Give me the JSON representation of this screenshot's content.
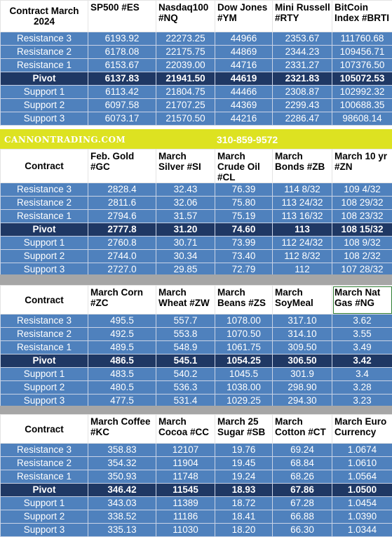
{
  "banner": {
    "site": "CANNONTRADING.COM",
    "phone": "310-859-9572"
  },
  "blocks": [
    {
      "headers": [
        "Contract March 2024",
        "SP500 #ES",
        "Nasdaq100 #NQ",
        "Dow Jones #YM",
        "Mini Russell #RTY",
        "BitCoin Index #BRTI"
      ],
      "rows": [
        {
          "label": "Resistance 3",
          "values": [
            "6193.92",
            "22273.25",
            "44966",
            "2353.67",
            "111760.68"
          ]
        },
        {
          "label": "Resistance 2",
          "values": [
            "6178.08",
            "22175.75",
            "44869",
            "2344.23",
            "109456.71"
          ]
        },
        {
          "label": "Resistance 1",
          "values": [
            "6153.67",
            "22039.00",
            "44716",
            "2331.27",
            "107376.50"
          ]
        },
        {
          "label": "Pivot",
          "values": [
            "6137.83",
            "21941.50",
            "44619",
            "2321.83",
            "105072.53"
          ],
          "pivot": true
        },
        {
          "label": "Support 1",
          "values": [
            "6113.42",
            "21804.75",
            "44466",
            "2308.87",
            "102992.32"
          ]
        },
        {
          "label": "Support 2",
          "values": [
            "6097.58",
            "21707.25",
            "44369",
            "2299.43",
            "100688.35"
          ]
        },
        {
          "label": "Support 3",
          "values": [
            "6073.17",
            "21570.50",
            "44216",
            "2286.47",
            "98608.14"
          ]
        }
      ]
    },
    {
      "headers": [
        "Contract",
        "Feb. Gold #GC",
        "March Silver #SI",
        "March Crude Oil #CL",
        "March Bonds  #ZB",
        "March 10 yr #ZN"
      ],
      "rows": [
        {
          "label": "Resistance 3",
          "values": [
            "2828.4",
            "32.43",
            "76.39",
            "114  8/32",
            "109  4/32"
          ]
        },
        {
          "label": "Resistance 2",
          "values": [
            "2811.6",
            "32.06",
            "75.80",
            "113 24/32",
            "108 29/32"
          ]
        },
        {
          "label": "Resistance 1",
          "values": [
            "2794.6",
            "31.57",
            "75.19",
            "113 16/32",
            "108 23/32"
          ]
        },
        {
          "label": "Pivot",
          "values": [
            "2777.8",
            "31.20",
            "74.60",
            "113",
            "108 15/32"
          ],
          "pivot": true
        },
        {
          "label": "Support 1",
          "values": [
            "2760.8",
            "30.71",
            "73.99",
            "112 24/32",
            "108  9/32"
          ]
        },
        {
          "label": "Support 2",
          "values": [
            "2744.0",
            "30.34",
            "73.40",
            "112  8/32",
            "108  2/32"
          ]
        },
        {
          "label": "Support 3",
          "values": [
            "2727.0",
            "29.85",
            "72.79",
            "112",
            "107 28/32"
          ]
        }
      ]
    },
    {
      "headers": [
        "Contract",
        "March Corn #ZC",
        "March Wheat #ZW",
        "March Beans #ZS",
        "March SoyMeal",
        "March Nat Gas #NG"
      ],
      "rows": [
        {
          "label": "Resistance 3",
          "values": [
            "495.5",
            "557.7",
            "1078.00",
            "317.10",
            "3.62"
          ]
        },
        {
          "label": "Resistance 2",
          "values": [
            "492.5",
            "553.8",
            "1070.50",
            "314.10",
            "3.55"
          ]
        },
        {
          "label": "Resistance 1",
          "values": [
            "489.5",
            "548.9",
            "1061.75",
            "309.50",
            "3.49"
          ]
        },
        {
          "label": "Pivot",
          "values": [
            "486.5",
            "545.1",
            "1054.25",
            "306.50",
            "3.42"
          ],
          "pivot": true
        },
        {
          "label": "Support 1",
          "values": [
            "483.5",
            "540.2",
            "1045.5",
            "301.9",
            "3.4"
          ]
        },
        {
          "label": "Support 2",
          "values": [
            "480.5",
            "536.3",
            "1038.00",
            "298.90",
            "3.28"
          ]
        },
        {
          "label": "Support 3",
          "values": [
            "477.5",
            "531.4",
            "1029.25",
            "294.30",
            "3.23"
          ]
        }
      ]
    },
    {
      "headers": [
        "Contract",
        "March Coffee #KC",
        "March Cocoa #CC",
        "March 25 Sugar #SB",
        "March Cotton #CT",
        "March Euro Currency"
      ],
      "rows": [
        {
          "label": "Resistance 3",
          "values": [
            "358.83",
            "12107",
            "19.76",
            "69.24",
            "1.0674"
          ]
        },
        {
          "label": "Resistance 2",
          "values": [
            "354.32",
            "11904",
            "19.45",
            "68.84",
            "1.0610"
          ]
        },
        {
          "label": "Resistance 1",
          "values": [
            "350.93",
            "11748",
            "19.24",
            "68.26",
            "1.0564"
          ]
        },
        {
          "label": "Pivot",
          "values": [
            "346.42",
            "11545",
            "18.93",
            "67.86",
            "1.0500"
          ],
          "pivot": true
        },
        {
          "label": "Support 1",
          "values": [
            "343.03",
            "11389",
            "18.72",
            "67.28",
            "1.0454"
          ]
        },
        {
          "label": "Support 2",
          "values": [
            "338.52",
            "11186",
            "18.41",
            "66.88",
            "1.0390"
          ]
        },
        {
          "label": "Support 3",
          "values": [
            "335.13",
            "11030",
            "18.20",
            "66.30",
            "1.0344"
          ]
        }
      ]
    }
  ]
}
